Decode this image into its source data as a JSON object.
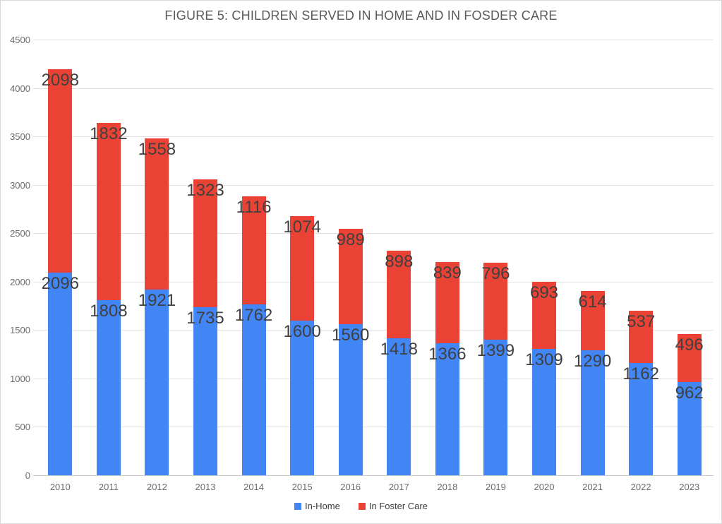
{
  "chart_data": {
    "type": "bar",
    "stacked": true,
    "title": "FIGURE 5: CHILDREN SERVED IN HOME AND IN FOSDER CARE",
    "categories": [
      "2010",
      "2011",
      "2012",
      "2013",
      "2014",
      "2015",
      "2016",
      "2017",
      "2018",
      "2019",
      "2020",
      "2021",
      "2022",
      "2023"
    ],
    "series": [
      {
        "name": "In-Home",
        "color": "#4285F4",
        "values": [
          2096,
          1808,
          1921,
          1735,
          1762,
          1600,
          1560,
          1418,
          1366,
          1399,
          1309,
          1290,
          1162,
          962
        ]
      },
      {
        "name": "In Foster Care",
        "color": "#EA4335",
        "values": [
          2098,
          1832,
          1558,
          1323,
          1116,
          1074,
          989,
          898,
          839,
          796,
          693,
          614,
          537,
          496
        ]
      }
    ],
    "xlabel": "",
    "ylabel": "",
    "ylim": [
      0,
      4500
    ],
    "yticks": [
      0,
      500,
      1000,
      1500,
      2000,
      2500,
      3000,
      3500,
      4000,
      4500
    ],
    "grid": "horizontal",
    "legend_position": "bottom",
    "data_labels": true
  }
}
